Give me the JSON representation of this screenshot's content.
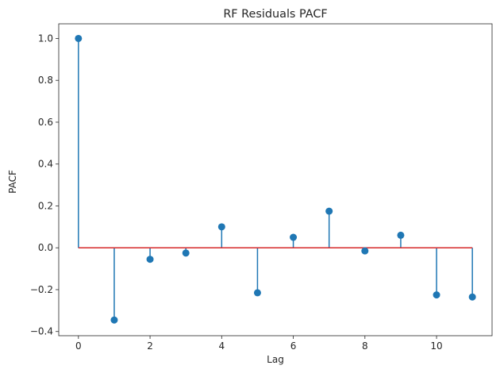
{
  "chart_data": {
    "type": "stem",
    "title": "RF Residuals PACF",
    "xlabel": "Lag",
    "ylabel": "PACF",
    "x": [
      0,
      1,
      2,
      3,
      4,
      5,
      6,
      7,
      8,
      9,
      10,
      11
    ],
    "y": [
      1.0,
      -0.345,
      -0.055,
      -0.025,
      0.1,
      -0.215,
      0.05,
      0.175,
      -0.015,
      0.06,
      -0.225,
      -0.235
    ],
    "xlim": [
      -0.55,
      11.55
    ],
    "ylim": [
      -0.42,
      1.07
    ],
    "xticks": [
      0,
      2,
      4,
      6,
      8,
      10
    ],
    "yticks": [
      -0.4,
      -0.2,
      0.0,
      0.2,
      0.4,
      0.6,
      0.8,
      1.0
    ],
    "ytick_labels": [
      "−0.4",
      "−0.2",
      "0.0",
      "0.2",
      "0.4",
      "0.6",
      "0.8",
      "1.0"
    ],
    "baseline": 0.0,
    "colors": {
      "stem": "#1f77b4",
      "marker": "#1f77b4",
      "baseline": "#d62728"
    },
    "grid": false,
    "legend": "none"
  }
}
